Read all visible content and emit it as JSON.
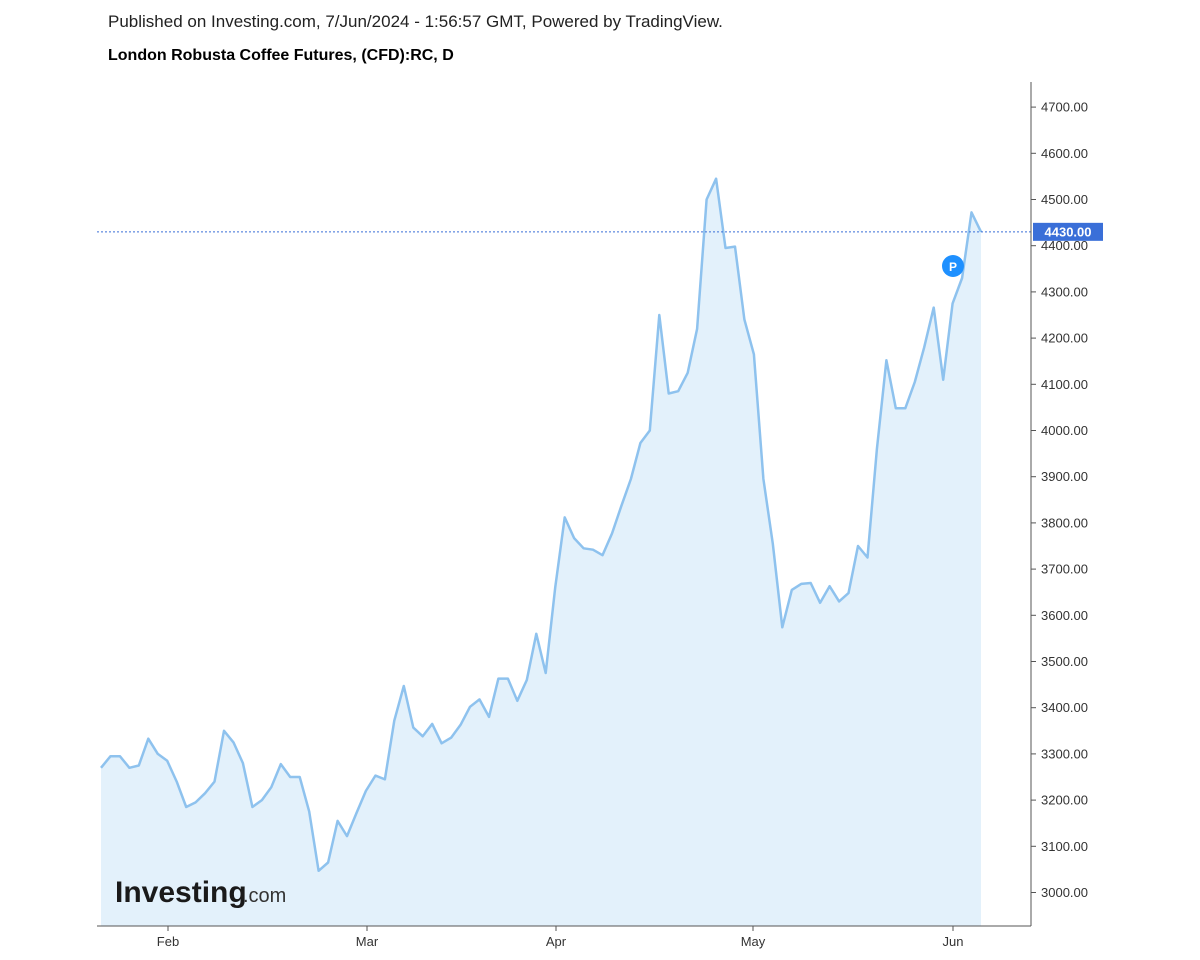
{
  "header": {
    "published": "Published on Investing.com, 7/Jun/2024 - 1:56:57 GMT, Powered by TradingView.",
    "title": "London Robusta Coffee Futures, (CFD):RC, D"
  },
  "logo": {
    "main": "Investing",
    "suffix": ".com"
  },
  "colors": {
    "line": "#8ec2ee",
    "area": "#e3f1fb",
    "price_tag": "#3a6fd8",
    "marker": "#1e90ff",
    "axis": "#555555"
  },
  "chart_data": {
    "type": "area",
    "title": "London Robusta Coffee Futures, (CFD):RC, D",
    "ylim": [
      2925,
      4760
    ],
    "y_ticks": [
      "3000.00",
      "3100.00",
      "3200.00",
      "3300.00",
      "3400.00",
      "3500.00",
      "3600.00",
      "3700.00",
      "3800.00",
      "3900.00",
      "4000.00",
      "4100.00",
      "4200.00",
      "4300.00",
      "4400.00",
      "4500.00",
      "4600.00",
      "4700.00"
    ],
    "x_ticks": [
      "Feb",
      "Mar",
      "Apr",
      "May",
      "Jun"
    ],
    "last_price": 4430,
    "last_price_label": "4430.00",
    "marker_label": "P",
    "grid": false,
    "series": [
      {
        "values": [
          3270,
          3295,
          3295,
          3270,
          3275,
          3333,
          3300,
          3285,
          3240,
          3185,
          3195,
          3215,
          3240,
          3350,
          3325,
          3280,
          3185,
          3200,
          3228,
          3278,
          3250,
          3250,
          3175,
          3047,
          3065,
          3155,
          3122,
          3172,
          3220,
          3253,
          3245,
          3372,
          3447,
          3357,
          3338,
          3365,
          3323,
          3335,
          3363,
          3402,
          3418,
          3380,
          3463,
          3463,
          3415,
          3460,
          3560,
          3475,
          3660,
          3812,
          3767,
          3745,
          3742,
          3730,
          3777,
          3837,
          3895,
          3973,
          4000,
          4250,
          4080,
          4085,
          4125,
          4220,
          4500,
          4545,
          4395,
          4398,
          4240,
          4165,
          3895,
          3755,
          3574,
          3655,
          3668,
          3670,
          3627,
          3663,
          3630,
          3648,
          3750,
          3725,
          3960,
          4152,
          4048,
          4048,
          4105,
          4180,
          4266,
          4110,
          4275,
          4330,
          4472,
          4430
        ]
      }
    ]
  }
}
